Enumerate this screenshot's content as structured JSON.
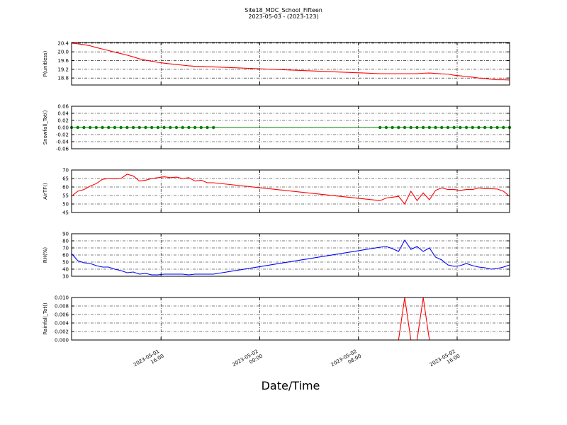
{
  "title": "Site18_MDC_School_Fifteen",
  "subtitle": "2023-05-03 - (2023-123)",
  "shared_x": {
    "xlabel": "Date/Time",
    "xlim": [
      "2023-05-01 08:45",
      "2023-05-02 20:15"
    ],
    "xticks": [
      "2023-05-01 16:00",
      "2023-05-02 00:00",
      "2023-05-02 08:00",
      "2023-05-02 16:00"
    ],
    "grid": true
  },
  "chart_data": [
    {
      "type": "line",
      "ylabel": "P(unitless)",
      "ylim": [
        18.48,
        20.43
      ],
      "yticks": [
        {
          "value": 18.8,
          "label": "18.8"
        },
        19.2,
        19.6,
        {
          "value": 20.0,
          "label": "20.0"
        },
        20.4
      ],
      "grid": true,
      "x": [
        "2023-05-01 08:45",
        "2023-05-01 09:15",
        "2023-05-01 09:45",
        "2023-05-01 10:15",
        "2023-05-01 10:45",
        "2023-05-01 11:15",
        "2023-05-01 11:45",
        "2023-05-01 12:15",
        "2023-05-01 12:45",
        "2023-05-01 13:15",
        "2023-05-01 13:45",
        "2023-05-01 14:15",
        "2023-05-01 14:45",
        "2023-05-01 15:15",
        "2023-05-01 15:45",
        "2023-05-01 16:15",
        "2023-05-01 16:45",
        "2023-05-01 17:15",
        "2023-05-01 17:45",
        "2023-05-01 18:15",
        "2023-05-01 18:45",
        "2023-05-01 19:15",
        "2023-05-01 19:45",
        "2023-05-01 20:15",
        "2023-05-02 09:45",
        "2023-05-02 10:15",
        "2023-05-02 10:45",
        "2023-05-02 11:15",
        "2023-05-02 11:45",
        "2023-05-02 12:15",
        "2023-05-02 12:45",
        "2023-05-02 13:15",
        "2023-05-02 13:45",
        "2023-05-02 14:15",
        "2023-05-02 14:45",
        "2023-05-02 15:15",
        "2023-05-02 15:45",
        "2023-05-02 16:15",
        "2023-05-02 16:45",
        "2023-05-02 17:15",
        "2023-05-02 17:45",
        "2023-05-02 18:15",
        "2023-05-02 18:45",
        "2023-05-02 19:15",
        "2023-05-02 19:45",
        "2023-05-02 20:15"
      ],
      "series": [
        {
          "color": "#ff0000",
          "marker": false,
          "values": [
            20.4,
            20.37,
            20.33,
            20.28,
            20.2,
            20.13,
            20.06,
            19.99,
            19.92,
            19.85,
            19.77,
            19.68,
            19.62,
            19.57,
            19.52,
            19.48,
            19.45,
            19.42,
            19.39,
            19.36,
            19.34,
            19.33,
            19.32,
            19.31,
            19.0,
            19.0,
            19.0,
            19.0,
            19.0,
            19.0,
            19.0,
            19.02,
            19.03,
            19.01,
            18.99,
            18.98,
            18.93,
            18.9,
            18.87,
            18.84,
            18.8,
            18.78,
            18.74,
            18.72,
            18.72,
            18.71
          ]
        }
      ]
    },
    {
      "type": "line",
      "ylabel": "Snowfall_Tot()",
      "ylim": [
        -0.06,
        0.06
      ],
      "yticks": [
        -0.06,
        -0.04,
        -0.02,
        {
          "value": 0,
          "label": "0.00"
        },
        0.02,
        0.04,
        0.06
      ],
      "grid": true,
      "x": [
        "2023-05-01 08:45",
        "2023-05-01 09:15",
        "2023-05-01 09:45",
        "2023-05-01 10:15",
        "2023-05-01 10:45",
        "2023-05-01 11:15",
        "2023-05-01 11:45",
        "2023-05-01 12:15",
        "2023-05-01 12:45",
        "2023-05-01 13:15",
        "2023-05-01 13:45",
        "2023-05-01 14:15",
        "2023-05-01 14:45",
        "2023-05-01 15:15",
        "2023-05-01 15:45",
        "2023-05-01 16:15",
        "2023-05-01 16:45",
        "2023-05-01 17:15",
        "2023-05-01 17:45",
        "2023-05-01 18:15",
        "2023-05-01 18:45",
        "2023-05-01 19:15",
        "2023-05-01 19:45",
        "2023-05-01 20:15",
        "2023-05-02 09:45",
        "2023-05-02 10:15",
        "2023-05-02 10:45",
        "2023-05-02 11:15",
        "2023-05-02 11:45",
        "2023-05-02 12:15",
        "2023-05-02 12:45",
        "2023-05-02 13:15",
        "2023-05-02 13:45",
        "2023-05-02 14:15",
        "2023-05-02 14:45",
        "2023-05-02 15:15",
        "2023-05-02 15:45",
        "2023-05-02 16:15",
        "2023-05-02 16:45",
        "2023-05-02 17:15",
        "2023-05-02 17:45",
        "2023-05-02 18:15",
        "2023-05-02 18:45",
        "2023-05-02 19:15",
        "2023-05-02 19:45",
        "2023-05-02 20:15"
      ],
      "series": [
        {
          "color": "#008000",
          "marker": true,
          "values": [
            0,
            0,
            0,
            0,
            0,
            0,
            0,
            0,
            0,
            0,
            0,
            0,
            0,
            0,
            0,
            0,
            0,
            0,
            0,
            0,
            0,
            0,
            0,
            0,
            0,
            0,
            0,
            0,
            0,
            0,
            0,
            0,
            0,
            0,
            0,
            0,
            0,
            0,
            0,
            0,
            0,
            0,
            0,
            0,
            0,
            0
          ]
        }
      ]
    },
    {
      "type": "line",
      "ylabel": "AirTF()",
      "ylim": [
        45,
        70
      ],
      "yticks": [
        45,
        50,
        55,
        60,
        65,
        70
      ],
      "grid": true,
      "x": [
        "2023-05-01 08:45",
        "2023-05-01 09:15",
        "2023-05-01 09:45",
        "2023-05-01 10:15",
        "2023-05-01 10:45",
        "2023-05-01 11:15",
        "2023-05-01 11:45",
        "2023-05-01 12:15",
        "2023-05-01 12:45",
        "2023-05-01 13:15",
        "2023-05-01 13:45",
        "2023-05-01 14:15",
        "2023-05-01 14:45",
        "2023-05-01 15:15",
        "2023-05-01 15:45",
        "2023-05-01 16:15",
        "2023-05-01 16:45",
        "2023-05-01 17:15",
        "2023-05-01 17:45",
        "2023-05-01 18:15",
        "2023-05-01 18:45",
        "2023-05-01 19:15",
        "2023-05-01 19:45",
        "2023-05-01 20:15",
        "2023-05-02 09:45",
        "2023-05-02 10:15",
        "2023-05-02 10:45",
        "2023-05-02 11:15",
        "2023-05-02 11:45",
        "2023-05-02 12:15",
        "2023-05-02 12:45",
        "2023-05-02 13:15",
        "2023-05-02 13:45",
        "2023-05-02 14:15",
        "2023-05-02 14:45",
        "2023-05-02 15:15",
        "2023-05-02 15:45",
        "2023-05-02 16:15",
        "2023-05-02 16:45",
        "2023-05-02 17:15",
        "2023-05-02 17:45",
        "2023-05-02 18:15",
        "2023-05-02 18:45",
        "2023-05-02 19:15",
        "2023-05-02 19:45",
        "2023-05-02 20:15"
      ],
      "series": [
        {
          "color": "#ff0000",
          "marker": false,
          "values": [
            54.6,
            57.5,
            58.5,
            60.5,
            62.0,
            64.5,
            65.0,
            64.8,
            65.0,
            67.5,
            66.5,
            63.5,
            64.0,
            65.0,
            65.5,
            66.0,
            65.5,
            65.8,
            65.0,
            65.5,
            63.5,
            64.0,
            62.5,
            62.5,
            52.0,
            53.5,
            54.0,
            54.5,
            50.0,
            57.5,
            52.0,
            56.5,
            52.5,
            58.0,
            59.5,
            58.5,
            58.5,
            58.0,
            58.5,
            58.5,
            59.5,
            59.0,
            59.0,
            58.8,
            57.5,
            54.5
          ]
        }
      ]
    },
    {
      "type": "line",
      "ylabel": "RH(%)",
      "ylim": [
        30,
        90
      ],
      "yticks": [
        30,
        40,
        50,
        60,
        70,
        80,
        90
      ],
      "grid": true,
      "x": [
        "2023-05-01 08:45",
        "2023-05-01 09:15",
        "2023-05-01 09:45",
        "2023-05-01 10:15",
        "2023-05-01 10:45",
        "2023-05-01 11:15",
        "2023-05-01 11:45",
        "2023-05-01 12:15",
        "2023-05-01 12:45",
        "2023-05-01 13:15",
        "2023-05-01 13:45",
        "2023-05-01 14:15",
        "2023-05-01 14:45",
        "2023-05-01 15:15",
        "2023-05-01 15:45",
        "2023-05-01 16:15",
        "2023-05-01 16:45",
        "2023-05-01 17:15",
        "2023-05-01 17:45",
        "2023-05-01 18:15",
        "2023-05-01 18:45",
        "2023-05-01 19:15",
        "2023-05-01 19:45",
        "2023-05-01 20:15",
        "2023-05-02 09:45",
        "2023-05-02 10:15",
        "2023-05-02 10:45",
        "2023-05-02 11:15",
        "2023-05-02 11:45",
        "2023-05-02 12:15",
        "2023-05-02 12:45",
        "2023-05-02 13:15",
        "2023-05-02 13:45",
        "2023-05-02 14:15",
        "2023-05-02 14:45",
        "2023-05-02 15:15",
        "2023-05-02 15:45",
        "2023-05-02 16:15",
        "2023-05-02 16:45",
        "2023-05-02 17:15",
        "2023-05-02 17:45",
        "2023-05-02 18:15",
        "2023-05-02 18:45",
        "2023-05-02 19:15",
        "2023-05-02 19:45",
        "2023-05-02 20:15"
      ],
      "series": [
        {
          "color": "#0000ff",
          "marker": false,
          "values": [
            62,
            52,
            49,
            48,
            45,
            43,
            43,
            40,
            38,
            35,
            36,
            33,
            34,
            32,
            32,
            33,
            33,
            33,
            33,
            32,
            33,
            33,
            33,
            33,
            71,
            72,
            69,
            65,
            81,
            68,
            72,
            65,
            70,
            57,
            53,
            46,
            44,
            45,
            48,
            45,
            43,
            42,
            40,
            41,
            43,
            46
          ]
        }
      ]
    },
    {
      "type": "line",
      "ylabel": "Rainfall_Tot()",
      "ylim": [
        0,
        0.01
      ],
      "yticks": [
        {
          "value": 0,
          "label": "0.000"
        },
        {
          "value": 0.002,
          "label": "0.002"
        },
        {
          "value": 0.004,
          "label": "0.004"
        },
        {
          "value": 0.006,
          "label": "0.006"
        },
        {
          "value": 0.008,
          "label": "0.008"
        },
        {
          "value": 0.01,
          "label": "0.010"
        }
      ],
      "grid": true,
      "x": [
        "2023-05-01 08:45",
        "2023-05-01 09:15",
        "2023-05-01 09:45",
        "2023-05-01 10:15",
        "2023-05-01 10:45",
        "2023-05-01 11:15",
        "2023-05-01 11:45",
        "2023-05-01 12:15",
        "2023-05-01 12:45",
        "2023-05-01 13:15",
        "2023-05-01 13:45",
        "2023-05-01 14:15",
        "2023-05-01 14:45",
        "2023-05-01 15:15",
        "2023-05-01 15:45",
        "2023-05-01 16:15",
        "2023-05-01 16:45",
        "2023-05-01 17:15",
        "2023-05-01 17:45",
        "2023-05-01 18:15",
        "2023-05-01 18:45",
        "2023-05-01 19:15",
        "2023-05-01 19:45",
        "2023-05-01 20:15",
        "2023-05-02 09:45",
        "2023-05-02 10:15",
        "2023-05-02 10:45",
        "2023-05-02 11:15",
        "2023-05-02 11:45",
        "2023-05-02 12:15",
        "2023-05-02 12:45",
        "2023-05-02 13:15",
        "2023-05-02 13:45",
        "2023-05-02 14:15",
        "2023-05-02 14:45",
        "2023-05-02 15:15",
        "2023-05-02 15:45",
        "2023-05-02 16:15",
        "2023-05-02 16:45",
        "2023-05-02 17:15",
        "2023-05-02 17:45",
        "2023-05-02 18:15",
        "2023-05-02 18:45",
        "2023-05-02 19:15",
        "2023-05-02 19:45",
        "2023-05-02 20:15"
      ],
      "series": [
        {
          "color": "#ff0000",
          "marker": false,
          "values": [
            0,
            0,
            0,
            0,
            0,
            0,
            0,
            0,
            0,
            0,
            0,
            0,
            0,
            0,
            0,
            0,
            0,
            0,
            0,
            0,
            0,
            0,
            0,
            0,
            0,
            0,
            0,
            0,
            0.01,
            0,
            0,
            0.01,
            0,
            0,
            0,
            0,
            0,
            0,
            0,
            0,
            0,
            0,
            0,
            0,
            0,
            0
          ]
        }
      ]
    }
  ]
}
